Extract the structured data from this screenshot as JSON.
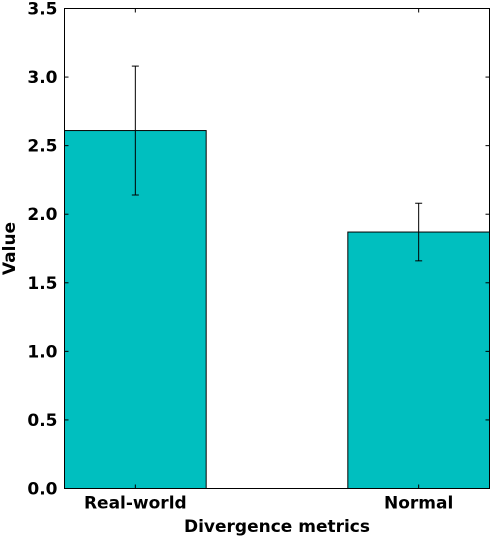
{
  "chart_data": {
    "type": "bar",
    "title": "",
    "xlabel": "Divergence metrics",
    "ylabel": "Value",
    "categories": [
      "Real-world",
      "Normal"
    ],
    "values": [
      2.61,
      1.87
    ],
    "error": [
      0.47,
      0.21
    ],
    "ylim": [
      0,
      3.5
    ],
    "yticks": [
      0.0,
      0.5,
      1.0,
      1.5,
      2.0,
      2.5,
      3.0,
      3.5
    ],
    "ytick_labels": [
      "0.0",
      "0.5",
      "1.0",
      "1.5",
      "2.0",
      "2.5",
      "3.0",
      "3.5"
    ],
    "bar_color": "#00bfbf",
    "grid": false,
    "legend": "none"
  }
}
